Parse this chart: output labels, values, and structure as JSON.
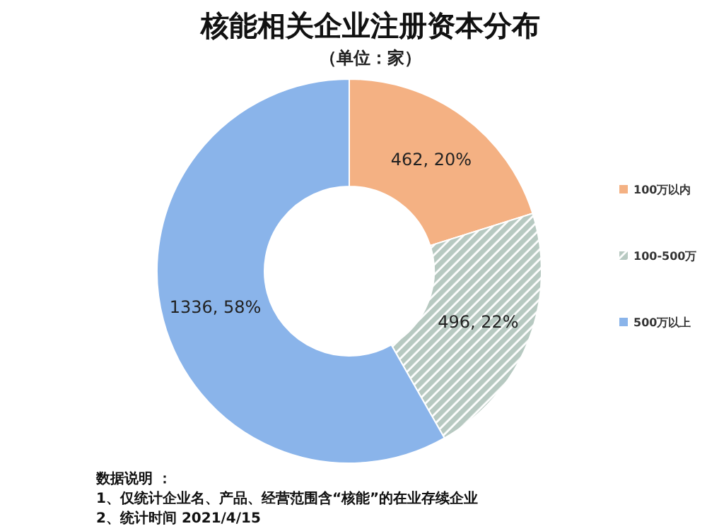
{
  "chart_data": {
    "type": "donut",
    "title": "核能相关企业注册资本分布",
    "subtitle": "（单位：家）",
    "categories": [
      "100万以内",
      "100-500万",
      "500万以上"
    ],
    "values": [
      462,
      496,
      1336
    ],
    "colors": [
      "#f4b183",
      "#b7c9c1",
      "#8ab4ea"
    ],
    "value_labels": [
      "462, 20%",
      "496, 22%",
      "1336, 58%"
    ],
    "legend": "right",
    "annotations": [
      "数据说明 ：",
      "1、仅统计企业名、产品、经营范围含“核能”的在业存续企业",
      "2、统计时间  2021/4/15"
    ]
  }
}
